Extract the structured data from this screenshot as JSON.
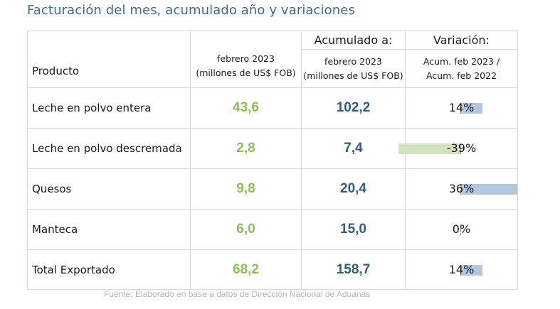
{
  "title": "Facturación del mes, acumulado año y variaciones",
  "header": {
    "product": "Producto",
    "month_line1": "febrero 2023",
    "month_line2": "(millones de US$ FOB)",
    "acum_title": "Acumulado a:",
    "acum_line1": "febrero 2023",
    "acum_line2": "(millones de US$ FOB)",
    "var_title": "Variación:",
    "var_line1": "Acum. feb 2023 /",
    "var_line2": "Acum. feb 2022"
  },
  "rows": [
    {
      "product": "Leche en polvo entera",
      "month": "43,6",
      "acum": "102,2",
      "var_label": "14%",
      "var_value": 14
    },
    {
      "product": "Leche en polvo descremada",
      "month": "2,8",
      "acum": "7,4",
      "var_label": "-39%",
      "var_value": -39
    },
    {
      "product": "Quesos",
      "month": "9,8",
      "acum": "20,4",
      "var_label": "36%",
      "var_value": 36
    },
    {
      "product": "Manteca",
      "month": "6,0",
      "acum": "15,0",
      "var_label": "0%",
      "var_value": 0
    },
    {
      "product": "Total Exportado",
      "month": "68,2",
      "acum": "158,7",
      "var_label": "14%",
      "var_value": 14
    }
  ],
  "colors": {
    "positive_bar": "#b4c7e2",
    "negative_bar": "#d3e3bd"
  },
  "source": "Fuente: Elaborado en base a datos de Dirección Nacional de Aduanas"
}
